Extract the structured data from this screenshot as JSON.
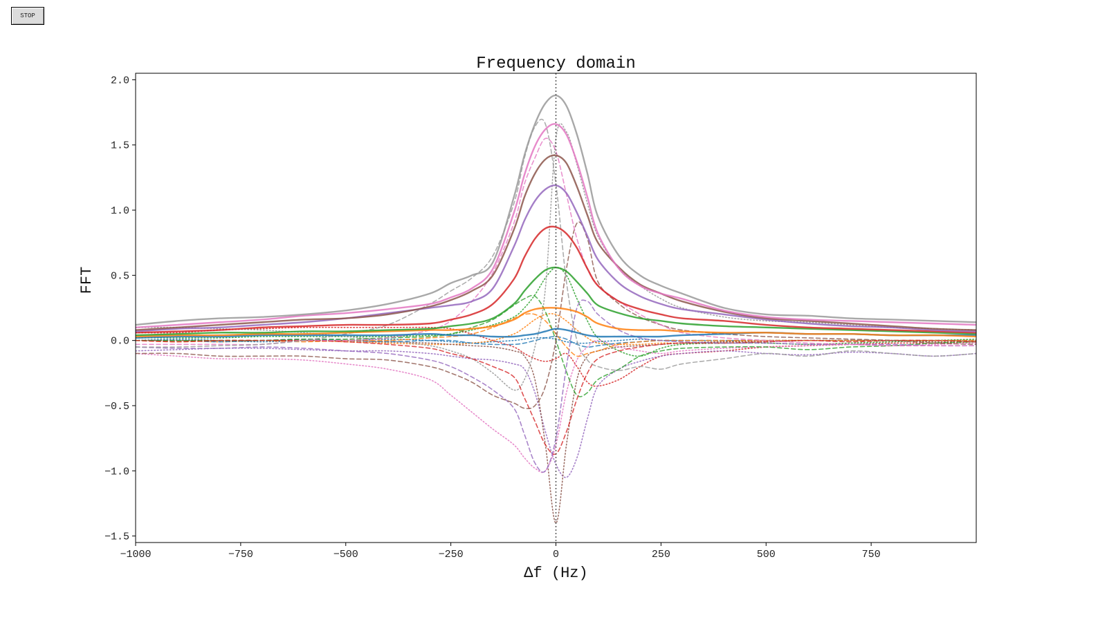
{
  "toolbar": {
    "stop_label": "STOP"
  },
  "chart_data": {
    "type": "line",
    "title": "Frequency domain",
    "xlabel": "Δf (Hz)",
    "ylabel": "FFT",
    "xlim": [
      -1000,
      1000
    ],
    "ylim": [
      -1.55,
      2.05
    ],
    "xticks": [
      -1000,
      -750,
      -500,
      -250,
      0,
      250,
      500,
      750
    ],
    "xtick_labels": [
      "−1000",
      "−750",
      "−500",
      "−250",
      "0",
      "250",
      "500",
      "750"
    ],
    "yticks": [
      -1.5,
      -1.0,
      -0.5,
      0.0,
      0.5,
      1.0,
      1.5,
      2.0
    ],
    "ytick_labels": [
      "−1.5",
      "−1.0",
      "−0.5",
      "0.0",
      "0.5",
      "1.0",
      "1.5",
      "2.0"
    ],
    "grid": false,
    "legend": "none",
    "vertical_reference_line": {
      "x": 0,
      "color": "#555555",
      "style": "dotted"
    },
    "x": [
      -1000,
      -900,
      -800,
      -700,
      -600,
      -500,
      -400,
      -300,
      -250,
      -200,
      -150,
      -100,
      -75,
      -50,
      -25,
      0,
      25,
      50,
      75,
      100,
      150,
      200,
      250,
      300,
      400,
      500,
      600,
      700,
      800,
      900,
      1000
    ],
    "series": [
      {
        "color": "#1f77b4",
        "style": "solid",
        "values": [
          0.02,
          0.03,
          0.03,
          0.04,
          0.04,
          0.04,
          0.04,
          0.05,
          0.04,
          0.04,
          0.03,
          0.03,
          0.04,
          0.05,
          0.07,
          0.09,
          0.08,
          0.06,
          0.04,
          0.03,
          0.03,
          0.03,
          0.03,
          0.04,
          0.05,
          0.06,
          0.05,
          0.05,
          0.04,
          0.04,
          0.04
        ]
      },
      {
        "color": "#ff7f0e",
        "style": "solid",
        "values": [
          0.03,
          0.04,
          0.04,
          0.05,
          0.05,
          0.06,
          0.07,
          0.08,
          0.08,
          0.09,
          0.11,
          0.16,
          0.21,
          0.24,
          0.25,
          0.25,
          0.24,
          0.22,
          0.18,
          0.13,
          0.09,
          0.08,
          0.08,
          0.07,
          0.06,
          0.06,
          0.05,
          0.05,
          0.04,
          0.04,
          0.03
        ]
      },
      {
        "color": "#2ca02c",
        "style": "solid",
        "values": [
          0.04,
          0.05,
          0.06,
          0.06,
          0.07,
          0.07,
          0.08,
          0.09,
          0.11,
          0.13,
          0.17,
          0.28,
          0.38,
          0.47,
          0.54,
          0.56,
          0.53,
          0.45,
          0.36,
          0.27,
          0.21,
          0.17,
          0.15,
          0.13,
          0.11,
          0.1,
          0.09,
          0.08,
          0.07,
          0.06,
          0.05
        ]
      },
      {
        "color": "#d62728",
        "style": "solid",
        "values": [
          0.06,
          0.07,
          0.08,
          0.1,
          0.11,
          0.12,
          0.12,
          0.13,
          0.16,
          0.2,
          0.28,
          0.47,
          0.64,
          0.78,
          0.86,
          0.87,
          0.82,
          0.71,
          0.55,
          0.42,
          0.3,
          0.24,
          0.2,
          0.17,
          0.15,
          0.12,
          0.1,
          0.09,
          0.08,
          0.07,
          0.06
        ]
      },
      {
        "color": "#9467bd",
        "style": "solid",
        "values": [
          0.07,
          0.09,
          0.1,
          0.12,
          0.14,
          0.17,
          0.21,
          0.25,
          0.27,
          0.3,
          0.4,
          0.72,
          0.92,
          1.07,
          1.16,
          1.19,
          1.13,
          0.98,
          0.8,
          0.62,
          0.44,
          0.34,
          0.28,
          0.24,
          0.2,
          0.16,
          0.13,
          0.11,
          0.1,
          0.08,
          0.07
        ]
      },
      {
        "color": "#8c564b",
        "style": "solid",
        "values": [
          0.08,
          0.1,
          0.12,
          0.14,
          0.16,
          0.17,
          0.2,
          0.26,
          0.31,
          0.38,
          0.5,
          0.85,
          1.1,
          1.28,
          1.39,
          1.42,
          1.36,
          1.18,
          0.96,
          0.75,
          0.56,
          0.43,
          0.36,
          0.3,
          0.22,
          0.17,
          0.15,
          0.13,
          0.11,
          0.09,
          0.08
        ]
      },
      {
        "color": "#e377c2",
        "style": "solid",
        "values": [
          0.1,
          0.12,
          0.14,
          0.16,
          0.19,
          0.21,
          0.24,
          0.28,
          0.33,
          0.4,
          0.55,
          0.98,
          1.27,
          1.49,
          1.62,
          1.66,
          1.58,
          1.37,
          1.1,
          0.82,
          0.55,
          0.42,
          0.36,
          0.32,
          0.23,
          0.18,
          0.16,
          0.15,
          0.14,
          0.13,
          0.12
        ]
      },
      {
        "color": "#999999",
        "style": "solid",
        "values": [
          0.12,
          0.15,
          0.17,
          0.18,
          0.2,
          0.23,
          0.28,
          0.36,
          0.44,
          0.5,
          0.6,
          1.1,
          1.42,
          1.66,
          1.82,
          1.88,
          1.8,
          1.58,
          1.28,
          0.95,
          0.65,
          0.5,
          0.42,
          0.36,
          0.25,
          0.2,
          0.19,
          0.17,
          0.16,
          0.15,
          0.14
        ]
      },
      {
        "color": "#1f77b4",
        "style": "dashed",
        "values": [
          0.0,
          0.0,
          -0.01,
          0.0,
          0.01,
          0.0,
          -0.01,
          0.0,
          0.0,
          -0.02,
          -0.03,
          -0.03,
          -0.02,
          0.0,
          0.02,
          0.03,
          0.01,
          -0.03,
          -0.05,
          -0.04,
          -0.02,
          -0.01,
          0.0,
          0.0,
          0.0,
          0.0,
          0.0,
          0.0,
          0.0,
          0.0,
          0.0
        ]
      },
      {
        "color": "#ff7f0e",
        "style": "dashed",
        "values": [
          0.0,
          -0.01,
          0.0,
          0.0,
          -0.01,
          0.0,
          0.0,
          0.02,
          0.03,
          0.05,
          0.1,
          0.17,
          0.2,
          0.2,
          0.15,
          0.05,
          -0.05,
          -0.12,
          -0.1,
          -0.08,
          -0.03,
          -0.01,
          0.0,
          0.0,
          0.0,
          0.0,
          0.0,
          0.0,
          0.0,
          0.0,
          0.0
        ]
      },
      {
        "color": "#2ca02c",
        "style": "dashed",
        "values": [
          0.0,
          0.0,
          0.0,
          0.0,
          0.01,
          0.01,
          0.02,
          0.03,
          0.05,
          0.1,
          0.16,
          0.27,
          0.32,
          0.34,
          0.22,
          0.0,
          -0.24,
          -0.42,
          -0.4,
          -0.3,
          -0.22,
          -0.12,
          -0.08,
          -0.06,
          -0.05,
          -0.05,
          -0.07,
          -0.05,
          -0.04,
          -0.02,
          -0.01
        ]
      },
      {
        "color": "#d62728",
        "style": "dashed",
        "values": [
          0.0,
          -0.01,
          0.0,
          0.0,
          0.0,
          -0.01,
          -0.03,
          -0.06,
          -0.1,
          -0.14,
          -0.2,
          -0.28,
          -0.44,
          -0.62,
          -0.8,
          -0.87,
          -0.7,
          -0.45,
          -0.25,
          -0.14,
          -0.08,
          -0.05,
          -0.03,
          -0.02,
          -0.02,
          -0.01,
          0.0,
          -0.01,
          0.0,
          0.0,
          -0.01
        ]
      },
      {
        "color": "#9467bd",
        "style": "dashed",
        "values": [
          -0.05,
          -0.06,
          -0.06,
          -0.05,
          -0.06,
          -0.08,
          -0.1,
          -0.15,
          -0.2,
          -0.28,
          -0.38,
          -0.52,
          -0.72,
          -0.94,
          -1.0,
          -0.75,
          -0.2,
          0.25,
          0.3,
          0.2,
          0.08,
          0.02,
          0.0,
          -0.01,
          -0.02,
          -0.02,
          -0.03,
          -0.03,
          -0.03,
          -0.04,
          -0.04
        ]
      },
      {
        "color": "#8c564b",
        "style": "dashed",
        "values": [
          -0.1,
          -0.1,
          -0.12,
          -0.12,
          -0.12,
          -0.14,
          -0.15,
          -0.2,
          -0.25,
          -0.32,
          -0.42,
          -0.48,
          -0.52,
          -0.5,
          -0.35,
          0.0,
          0.55,
          0.9,
          0.78,
          0.45,
          0.28,
          0.18,
          0.12,
          0.08,
          0.05,
          0.03,
          0.02,
          0.01,
          0.0,
          -0.02,
          -0.03
        ]
      },
      {
        "color": "#e377c2",
        "style": "dashed",
        "values": [
          -0.03,
          -0.03,
          -0.03,
          -0.03,
          0.0,
          0.0,
          0.02,
          0.08,
          0.15,
          0.3,
          0.52,
          0.9,
          1.2,
          1.4,
          1.55,
          1.45,
          1.12,
          0.78,
          0.55,
          0.42,
          0.3,
          0.2,
          0.12,
          0.06,
          0.02,
          0.0,
          -0.02,
          -0.03,
          -0.04,
          -0.04,
          -0.04
        ]
      },
      {
        "color": "#999999",
        "style": "dashed",
        "values": [
          -0.05,
          -0.05,
          -0.04,
          -0.03,
          0.0,
          0.05,
          0.12,
          0.28,
          0.38,
          0.48,
          0.65,
          1.05,
          1.4,
          1.64,
          1.66,
          1.2,
          0.45,
          0.0,
          -0.15,
          -0.2,
          -0.23,
          -0.2,
          -0.22,
          -0.18,
          -0.14,
          -0.1,
          -0.12,
          -0.08,
          -0.1,
          -0.12,
          -0.1
        ]
      },
      {
        "color": "#1f77b4",
        "style": "dotted",
        "values": [
          0.0,
          0.01,
          0.0,
          -0.01,
          0.0,
          0.0,
          0.01,
          0.0,
          -0.01,
          -0.02,
          -0.01,
          0.0,
          0.01,
          0.02,
          0.02,
          0.01,
          -0.01,
          -0.02,
          -0.02,
          -0.01,
          0.0,
          0.01,
          0.0,
          0.0,
          0.0,
          0.0,
          0.0,
          0.0,
          0.0,
          0.0,
          0.0
        ]
      },
      {
        "color": "#ff7f0e",
        "style": "dotted",
        "values": [
          0.0,
          0.0,
          -0.01,
          0.0,
          0.0,
          -0.01,
          -0.02,
          -0.03,
          -0.03,
          -0.02,
          0.0,
          0.05,
          0.1,
          0.16,
          0.2,
          0.2,
          0.15,
          0.08,
          0.02,
          -0.02,
          -0.03,
          -0.03,
          -0.02,
          -0.02,
          -0.01,
          0.0,
          0.0,
          0.0,
          0.0,
          0.0,
          0.0
        ]
      },
      {
        "color": "#2ca02c",
        "style": "dotted",
        "values": [
          0.02,
          0.02,
          0.02,
          0.03,
          0.03,
          0.03,
          0.03,
          0.04,
          0.05,
          0.08,
          0.12,
          0.18,
          0.25,
          0.35,
          0.48,
          0.56,
          0.5,
          0.32,
          0.15,
          0.02,
          -0.08,
          -0.12,
          -0.06,
          -0.03,
          -0.02,
          -0.02,
          -0.03,
          -0.02,
          -0.01,
          0.0,
          0.01
        ]
      },
      {
        "color": "#d62728",
        "style": "dotted",
        "values": [
          0.06,
          0.06,
          0.08,
          0.09,
          0.1,
          0.1,
          0.1,
          0.1,
          0.09,
          0.05,
          0.0,
          -0.05,
          -0.1,
          -0.14,
          -0.16,
          -0.14,
          -0.1,
          -0.2,
          -0.32,
          -0.35,
          -0.3,
          -0.2,
          -0.12,
          -0.1,
          -0.08,
          -0.05,
          -0.04,
          -0.03,
          -0.02,
          -0.02,
          -0.01
        ]
      },
      {
        "color": "#9467bd",
        "style": "dotted",
        "values": [
          -0.08,
          -0.07,
          -0.06,
          -0.06,
          -0.07,
          -0.08,
          -0.08,
          -0.1,
          -0.12,
          -0.14,
          -0.15,
          -0.18,
          -0.22,
          -0.4,
          -0.7,
          -0.95,
          -1.05,
          -0.9,
          -0.6,
          -0.35,
          -0.22,
          -0.16,
          -0.12,
          -0.1,
          -0.08,
          -0.1,
          -0.11,
          -0.09,
          -0.1,
          -0.12,
          -0.1
        ]
      },
      {
        "color": "#8c564b",
        "style": "dotted",
        "values": [
          0.0,
          0.0,
          0.0,
          0.0,
          0.0,
          0.0,
          -0.01,
          -0.02,
          -0.03,
          -0.04,
          -0.05,
          -0.08,
          -0.12,
          -0.3,
          -0.8,
          -1.4,
          -0.8,
          -0.3,
          -0.12,
          -0.08,
          -0.05,
          -0.04,
          -0.03,
          -0.02,
          -0.01,
          -0.01,
          0.0,
          0.0,
          0.0,
          -0.01,
          -0.01
        ]
      },
      {
        "color": "#e377c2",
        "style": "dotted",
        "values": [
          -0.1,
          -0.12,
          -0.14,
          -0.14,
          -0.15,
          -0.18,
          -0.22,
          -0.3,
          -0.42,
          -0.55,
          -0.68,
          -0.8,
          -0.9,
          -0.98,
          -1.0,
          -0.8,
          -0.4,
          -0.15,
          -0.05,
          0.0,
          -0.05,
          -0.08,
          -0.1,
          -0.08,
          -0.06,
          -0.05,
          -0.04,
          -0.03,
          -0.04,
          -0.03,
          -0.02
        ]
      },
      {
        "color": "#999999",
        "style": "dotted",
        "values": [
          0.1,
          0.1,
          0.09,
          0.08,
          0.06,
          0.03,
          0.0,
          -0.04,
          -0.08,
          -0.14,
          -0.25,
          -0.38,
          -0.3,
          -0.05,
          0.4,
          1.55,
          1.6,
          1.35,
          1.05,
          0.8,
          0.55,
          0.42,
          0.32,
          0.25,
          0.18,
          0.15,
          0.14,
          0.12,
          0.1,
          0.09,
          0.08
        ]
      }
    ]
  }
}
